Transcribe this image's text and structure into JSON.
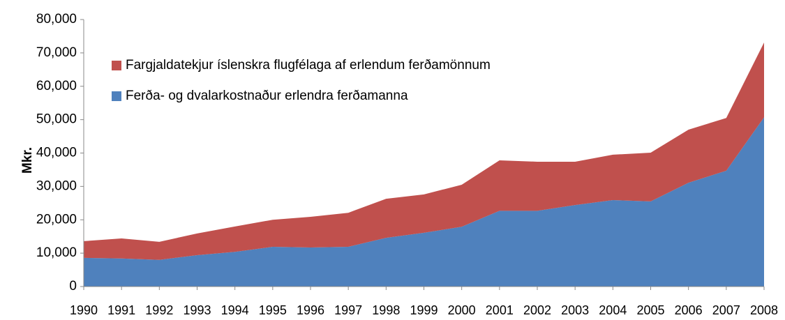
{
  "chart_data": {
    "type": "stacked-area",
    "y_label": "Mkr.",
    "categories": [
      "1990",
      "1991",
      "1992",
      "1993",
      "1994",
      "1995",
      "1996",
      "1997",
      "1998",
      "1999",
      "2000",
      "2001",
      "2002",
      "2003",
      "2004",
      "2005",
      "2006",
      "2007",
      "2008"
    ],
    "series": [
      {
        "name": "Ferða- og dvalarkostnaður erlendra ferðamanna",
        "color": "#4f81bd",
        "values": [
          8600,
          8400,
          8000,
          9400,
          10400,
          11900,
          11700,
          11900,
          14600,
          16100,
          17900,
          22700,
          22700,
          24400,
          25900,
          25500,
          31100,
          34700,
          50700
        ]
      },
      {
        "name": "Fargjaldatekjur íslenskra flugfélaga af erlendum ferðamönnum",
        "color": "#c0504d",
        "values": [
          5000,
          6000,
          5400,
          6500,
          7600,
          8100,
          9200,
          10200,
          11700,
          11500,
          12600,
          15100,
          14700,
          13000,
          13600,
          14600,
          15900,
          15800,
          22400
        ]
      }
    ],
    "ylim": [
      0,
      80000
    ],
    "yticks": [
      0,
      {
        "value": 10000,
        "label": "10,000"
      },
      {
        "value": 20000,
        "label": "20,000"
      },
      {
        "value": 30000,
        "label": "30,000"
      },
      {
        "value": 40000,
        "label": "40,000"
      },
      {
        "value": 50000,
        "label": "50,000"
      },
      {
        "value": 60000,
        "label": "60,000"
      },
      {
        "value": 70000,
        "label": "70,000"
      },
      {
        "value": 80000,
        "label": "80,000"
      }
    ],
    "grid": false
  }
}
